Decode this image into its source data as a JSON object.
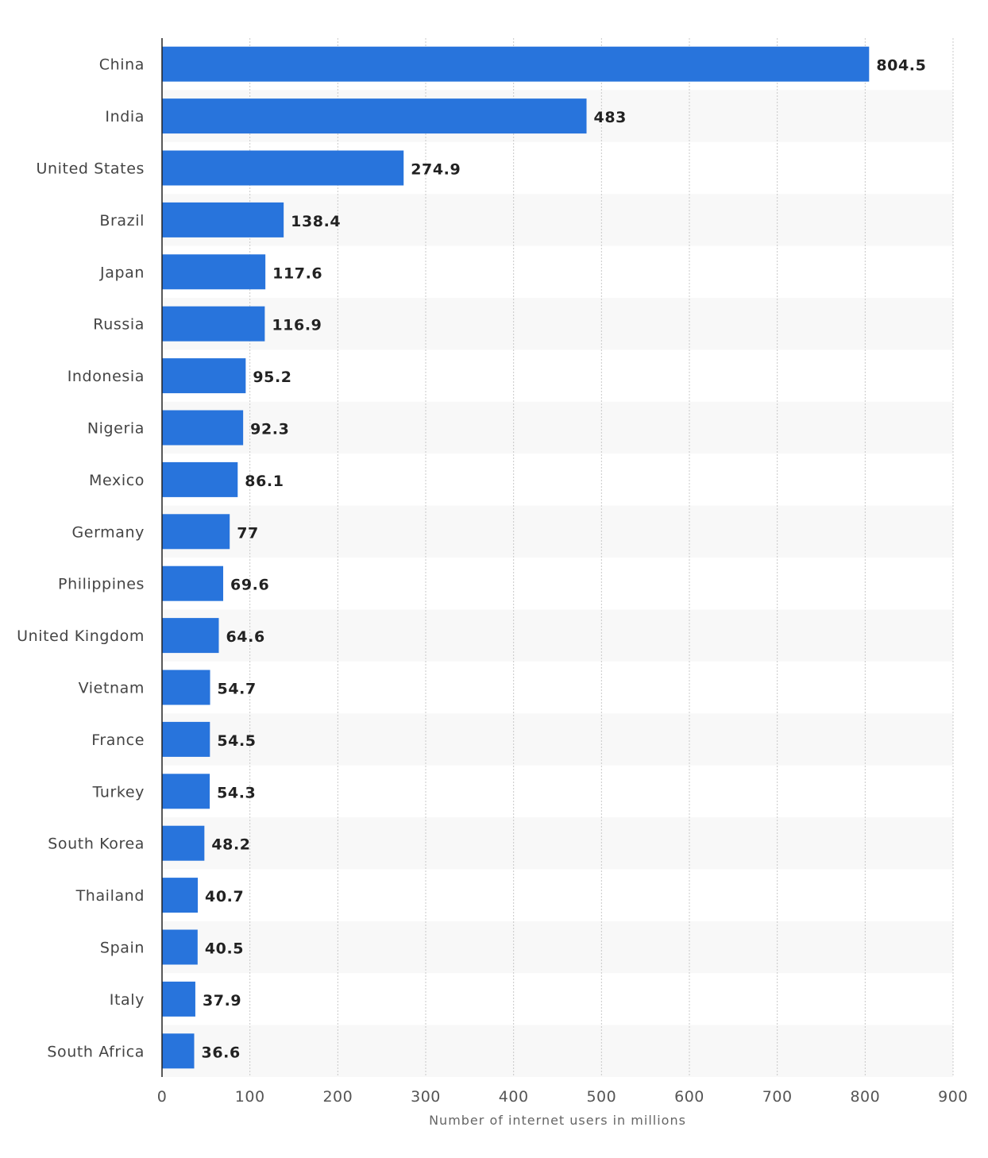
{
  "chart_data": {
    "type": "bar",
    "orientation": "horizontal",
    "title": "",
    "xlabel": "Number of internet users in millions",
    "ylabel": "",
    "xlim": [
      0,
      900
    ],
    "xticks": [
      "0",
      "100",
      "200",
      "300",
      "400",
      "500",
      "600",
      "700",
      "800",
      "900"
    ],
    "grid": true,
    "bar_color": "#2874dc",
    "categories": [
      "China",
      "India",
      "United States",
      "Brazil",
      "Japan",
      "Russia",
      "Indonesia",
      "Nigeria",
      "Mexico",
      "Germany",
      "Philippines",
      "United Kingdom",
      "Vietnam",
      "France",
      "Turkey",
      "South Korea",
      "Thailand",
      "Spain",
      "Italy",
      "South Africa"
    ],
    "values": [
      804.5,
      483,
      274.9,
      138.4,
      117.6,
      116.9,
      95.2,
      92.3,
      86.1,
      77,
      69.6,
      64.6,
      54.7,
      54.5,
      54.3,
      48.2,
      40.7,
      40.5,
      37.9,
      36.6
    ],
    "value_labels": [
      "804.5",
      "483",
      "274.9",
      "138.4",
      "117.6",
      "116.9",
      "95.2",
      "92.3",
      "86.1",
      "77",
      "69.6",
      "64.6",
      "54.7",
      "54.5",
      "54.3",
      "48.2",
      "40.7",
      "40.5",
      "37.9",
      "36.6"
    ]
  }
}
